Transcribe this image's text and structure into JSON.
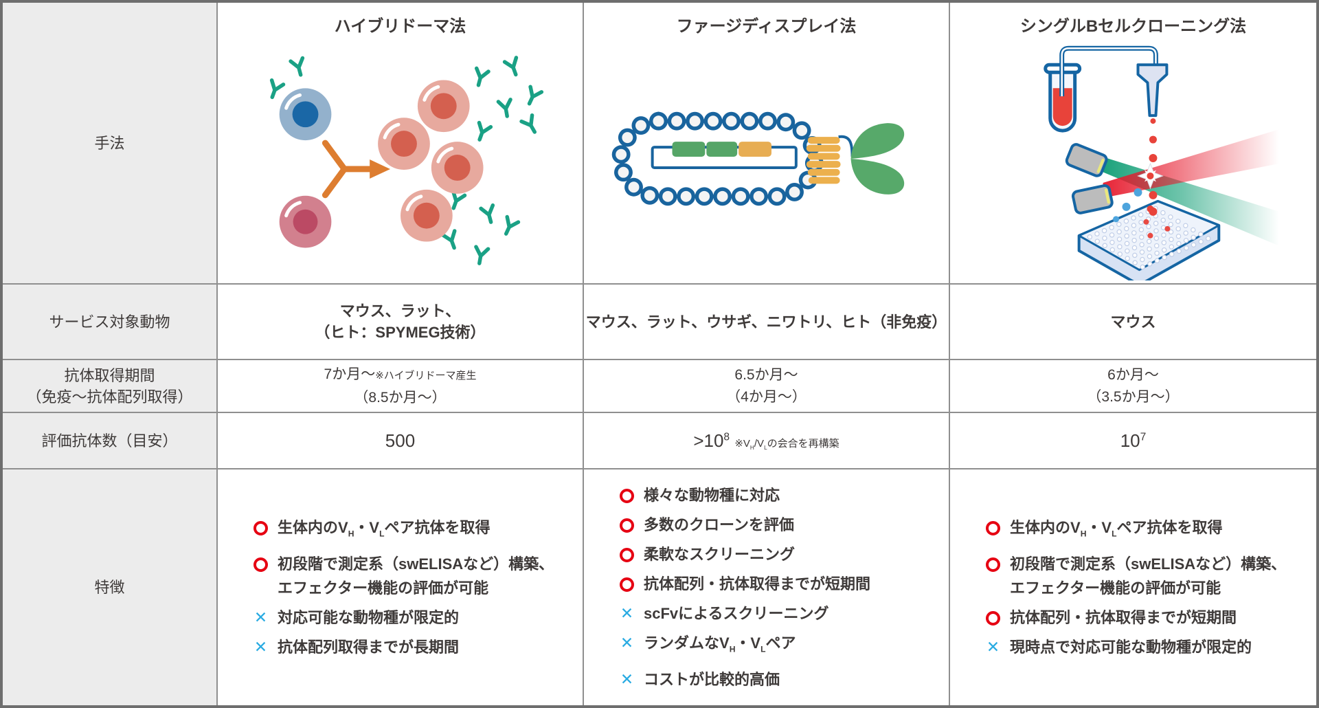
{
  "colors": {
    "pro_marker": "#e60012",
    "con_marker": "#29abe2",
    "text": "#3e3a39",
    "label_bg": "#ececec",
    "outer_border": "#6e6e6e",
    "grid_line": "#8f8f8f",
    "illustration": {
      "teal_antibody": "#1aa185",
      "orange_arrow": "#dd7d30",
      "blue_cell": "#93b1cc",
      "blue_nucleus": "#1a67a6",
      "red_cell": "#d2808e",
      "red_nucleus": "#bb4a64",
      "pink_cell": "#e7a99e",
      "pink_nucleus": "#d4604f",
      "phage_blue": "#19649e",
      "phage_green": "#55a567",
      "phage_yellow": "#e7ad53",
      "laser_red": "#e6192c",
      "laser_green": "#0f9d74",
      "device_blue": "#1565a3"
    }
  },
  "markers": {
    "con_glyph": "✕",
    "pro_meaning": "advantage",
    "con_meaning": "disadvantage"
  },
  "row_labels": {
    "method": [
      "手法"
    ],
    "animals": [
      "サービス対象動物"
    ],
    "period": [
      "抗体取得期間",
      "（免疫〜抗体配列取得）"
    ],
    "count": [
      "評価抗体数（目安）"
    ],
    "features": [
      "特徴"
    ]
  },
  "methods": [
    {
      "title": "ハイブリドーマ法",
      "illustration": "hybridoma-illustration",
      "animals": [
        [
          "マウス、ラット、"
        ],
        [
          "（ヒト：SPYMEG技術）"
        ]
      ],
      "period": [
        [
          "7か月〜",
          {
            "t": "small",
            "c": "※ハイブリドーマ産生"
          }
        ],
        [
          "（8.5か月〜）"
        ]
      ],
      "count": [
        [
          "500"
        ]
      ],
      "features": [
        {
          "type": "pro",
          "segments": [
            "生体内のV",
            {
              "t": "sub",
              "c": "H"
            },
            "・V",
            {
              "t": "sub",
              "c": "L"
            },
            "ペア抗体を取得"
          ]
        },
        {
          "type": "pro",
          "segments": [
            "初段階で測定系（swELISAなど）構築、"
          ]
        },
        {
          "type": "cont",
          "segments": [
            "エフェクター機能の評価が可能"
          ]
        },
        {
          "type": "con",
          "segments": [
            "対応可能な動物種が限定的"
          ]
        },
        {
          "type": "con",
          "segments": [
            "抗体配列取得までが長期間"
          ]
        }
      ]
    },
    {
      "title": "ファージディスプレイ法",
      "illustration": "phage-display-illustration",
      "animals": [
        [
          "マウス、ラット、ウサギ、ニワトリ、ヒト（非免疫）"
        ]
      ],
      "period": [
        [
          "6.5か月〜"
        ],
        [
          "（4か月〜）"
        ]
      ],
      "count": [
        [
          ">10",
          {
            "t": "sup",
            "c": "8"
          },
          "  ",
          {
            "t": "small",
            "c": [
              "※V",
              {
                "t": "sub",
                "c": "H"
              },
              "/V",
              {
                "t": "sub",
                "c": "L"
              },
              "の会合を再構築"
            ]
          }
        ]
      ],
      "features": [
        {
          "type": "pro",
          "segments": [
            "様々な動物種に対応"
          ]
        },
        {
          "type": "pro",
          "segments": [
            "多数のクローンを評価"
          ]
        },
        {
          "type": "pro",
          "segments": [
            "柔軟なスクリーニング"
          ]
        },
        {
          "type": "pro",
          "segments": [
            "抗体配列・抗体取得までが短期間"
          ]
        },
        {
          "type": "con",
          "segments": [
            "scFvによるスクリーニング"
          ]
        },
        {
          "type": "con",
          "segments": [
            "ランダムなV",
            {
              "t": "sub",
              "c": "H"
            },
            "・V",
            {
              "t": "sub",
              "c": "L"
            },
            "ペア"
          ]
        },
        {
          "type": "con",
          "segments": [
            "コストが比較的高価"
          ]
        }
      ]
    },
    {
      "title": "シングルBセルクローニング法",
      "illustration": "single-b-cell-cloning-illustration",
      "animals": [
        [
          "マウス"
        ]
      ],
      "period": [
        [
          "6か月〜"
        ],
        [
          "（3.5か月〜）"
        ]
      ],
      "count": [
        [
          "10",
          {
            "t": "sup",
            "c": "7"
          }
        ]
      ],
      "features": [
        {
          "type": "pro",
          "segments": [
            "生体内のV",
            {
              "t": "sub",
              "c": "H"
            },
            "・V",
            {
              "t": "sub",
              "c": "L"
            },
            "ペア抗体を取得"
          ]
        },
        {
          "type": "pro",
          "segments": [
            "初段階で測定系（swELISAなど）構築、"
          ]
        },
        {
          "type": "cont",
          "segments": [
            "エフェクター機能の評価が可能"
          ]
        },
        {
          "type": "pro",
          "segments": [
            "抗体配列・抗体取得までが短期間"
          ]
        },
        {
          "type": "con",
          "segments": [
            "現時点で対応可能な動物種が限定的"
          ]
        }
      ]
    }
  ]
}
